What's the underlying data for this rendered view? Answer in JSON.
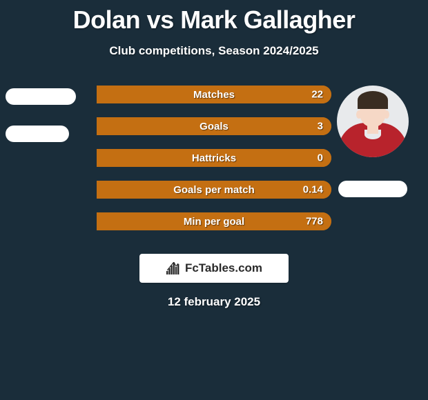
{
  "title": "Dolan vs Mark Gallagher",
  "subtitle": "Club competitions, Season 2024/2025",
  "date": "12 february 2025",
  "brand": "FcTables.com",
  "background_color": "#1a2d3a",
  "players": {
    "left": {
      "name": "",
      "avatar_present": false
    },
    "right": {
      "name": " ",
      "avatar_present": true
    }
  },
  "colors": {
    "player1": "#6d8a2f",
    "player2": "#c46f12",
    "text": "#ffffff",
    "pill_bg": "#ffffff",
    "brand_bg": "#ffffff",
    "brand_text": "#2a2a2a"
  },
  "typography": {
    "title_fontsize": 36,
    "subtitle_fontsize": 17,
    "stat_label_fontsize": 15,
    "date_fontsize": 17
  },
  "stats": [
    {
      "label": "Matches",
      "p1": null,
      "p2": 22,
      "p1_pct": 0,
      "p2_pct": 100
    },
    {
      "label": "Goals",
      "p1": null,
      "p2": 3,
      "p1_pct": 0,
      "p2_pct": 100
    },
    {
      "label": "Hattricks",
      "p1": null,
      "p2": 0,
      "p1_pct": 0,
      "p2_pct": 100
    },
    {
      "label": "Goals per match",
      "p1": null,
      "p2": 0.14,
      "p1_pct": 0,
      "p2_pct": 100
    },
    {
      "label": "Min per goal",
      "p1": null,
      "p2": 778,
      "p1_pct": 0,
      "p2_pct": 100
    }
  ],
  "brand_icon": {
    "bars": [
      5,
      9,
      13,
      17,
      11,
      15
    ],
    "color": "#2a2a2a"
  }
}
